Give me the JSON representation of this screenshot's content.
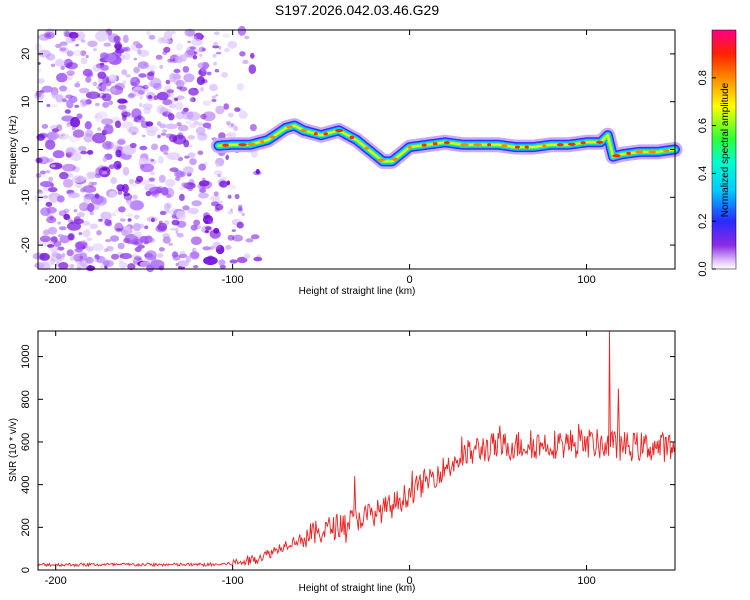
{
  "title": "S197.2026.042.03.46.G29",
  "chart_data": [
    {
      "type": "heatmap",
      "xlabel": "Height of straight line (km)",
      "ylabel": "Frequency (Hz)",
      "xlim": [
        -210,
        150
      ],
      "ylim": [
        -25,
        25
      ],
      "x_ticks": [
        -200,
        -100,
        0,
        100
      ],
      "y_ticks": [
        -20,
        -10,
        0,
        10,
        20
      ],
      "noise_region_x": [
        -210,
        -85
      ],
      "ridge": {
        "x": [
          -108,
          -100,
          -90,
          -80,
          -70,
          -65,
          -60,
          -50,
          -40,
          -30,
          -20,
          -15,
          -10,
          -5,
          0,
          10,
          20,
          30,
          40,
          50,
          60,
          70,
          80,
          90,
          100,
          108,
          112,
          115,
          120,
          130,
          140,
          150
        ],
        "y": [
          0.8,
          1,
          1,
          2,
          4.5,
          5,
          4,
          3,
          4,
          2,
          -1,
          -2.5,
          -2.5,
          -1,
          0.5,
          1,
          1.5,
          1,
          1,
          1,
          0.5,
          0.5,
          1,
          1,
          1.5,
          1.5,
          3,
          -1.5,
          -1,
          -0.5,
          -0.5,
          0
        ]
      },
      "colorbar": {
        "label": "Normalized spectral amplitude",
        "range": [
          0,
          1
        ],
        "ticks": [
          0.0,
          0.2,
          0.4,
          0.6,
          0.8
        ]
      }
    },
    {
      "type": "line",
      "xlabel": "Height of straight line (km)",
      "ylabel": "SNR (10 * v/v)",
      "xlim": [
        -210,
        150
      ],
      "ylim": [
        0,
        1120
      ],
      "x_ticks": [
        -200,
        -100,
        0,
        100
      ],
      "y_ticks": [
        0,
        200,
        400,
        600,
        800,
        1000
      ],
      "color": "#ee2222",
      "trend": {
        "x": [
          -210,
          -110,
          -100,
          -90,
          -80,
          -70,
          -60,
          -50,
          -40,
          -30,
          -20,
          -10,
          0,
          10,
          20,
          30,
          40,
          60,
          80,
          100,
          120,
          150
        ],
        "y": [
          25,
          25,
          30,
          45,
          75,
          120,
          150,
          180,
          210,
          240,
          265,
          300,
          360,
          420,
          480,
          530,
          570,
          585,
          590,
          595,
          580,
          575
        ]
      },
      "spikes": [
        {
          "x": -31,
          "y": 440
        },
        {
          "x": 113,
          "y": 1120
        },
        {
          "x": 118,
          "y": 850
        }
      ]
    }
  ]
}
